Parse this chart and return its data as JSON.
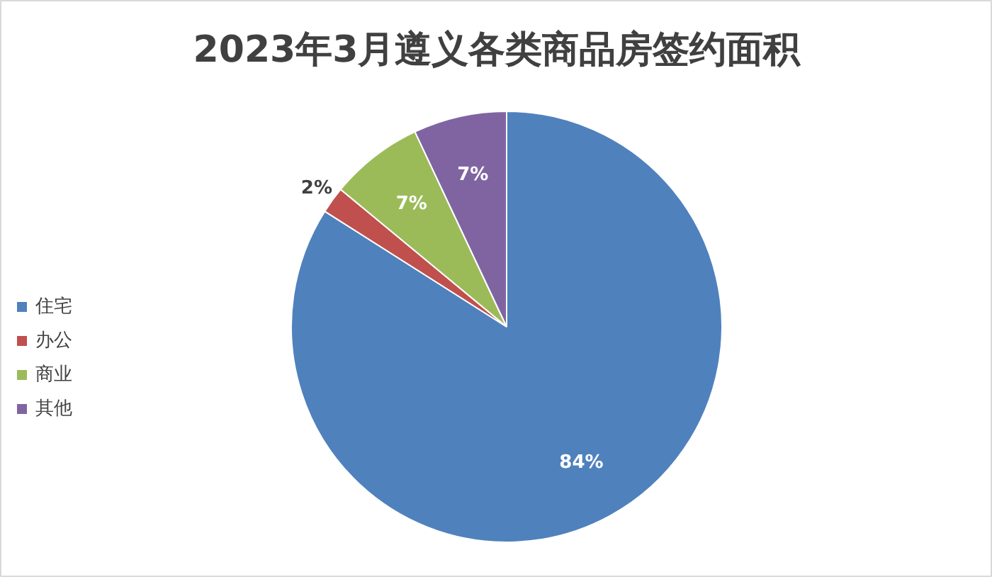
{
  "chart_data": {
    "type": "pie",
    "title": "2023年3月遵义各类商品房签约面积",
    "categories": [
      "住宅",
      "办公",
      "商业",
      "其他"
    ],
    "values": [
      84,
      2,
      7,
      7
    ],
    "colors": [
      "#4f81bd",
      "#c0504d",
      "#9bbb59",
      "#8064a2"
    ],
    "value_labels": [
      "84%",
      "2%",
      "7%",
      "7%"
    ],
    "legend": "left"
  }
}
